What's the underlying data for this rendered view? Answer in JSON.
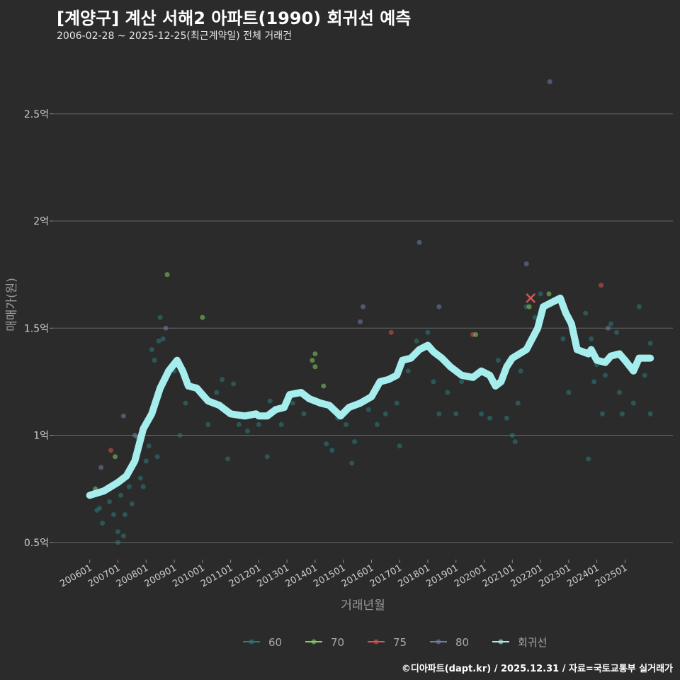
{
  "chart_data": {
    "type": "scatter",
    "title": "[계양구] 계산 서해2 아파트(1990) 회귀선 예측",
    "subtitle": "2006-02-28 ~ 2025-12-25(최근계약일) 전체 거래건",
    "xlabel": "거래년월",
    "ylabel": "매매가(원)",
    "xlim": [
      2004.7,
      2026.7
    ],
    "ylim": [
      0.42,
      2.8
    ],
    "x_ticks": [
      "200601",
      "200701",
      "200801",
      "200901",
      "201001",
      "201101",
      "201201",
      "201301",
      "201401",
      "201501",
      "201601",
      "201701",
      "201801",
      "201901",
      "202001",
      "202101",
      "202201",
      "202301",
      "202401",
      "202501"
    ],
    "y_ticks": [
      {
        "v": 0.5,
        "label": "0.5억"
      },
      {
        "v": 1,
        "label": "1억"
      },
      {
        "v": 1.5,
        "label": "1.5억"
      },
      {
        "v": 2,
        "label": "2억"
      },
      {
        "v": 2.5,
        "label": "2.5억"
      }
    ],
    "grid": true,
    "legend": "bottom",
    "legend_items": [
      {
        "label": "60",
        "color": "#2b7b7b"
      },
      {
        "label": "70",
        "color": "#7fd15d"
      },
      {
        "label": "75",
        "color": "#d9534f"
      },
      {
        "label": "80",
        "color": "#6c7fa8"
      },
      {
        "label": "회귀선",
        "color": "#a6eeee"
      }
    ],
    "points": [
      [
        2006.1,
        0.72,
        "60"
      ],
      [
        2006.2,
        0.75,
        "70"
      ],
      [
        2006.25,
        0.65,
        "60"
      ],
      [
        2006.35,
        0.66,
        "60"
      ],
      [
        2006.4,
        0.85,
        "80"
      ],
      [
        2006.45,
        0.59,
        "60"
      ],
      [
        2006.7,
        0.69,
        "60"
      ],
      [
        2006.75,
        0.93,
        "75"
      ],
      [
        2006.85,
        0.63,
        "60"
      ],
      [
        2006.9,
        0.9,
        "70"
      ],
      [
        2007.0,
        0.55,
        "60"
      ],
      [
        2007.0,
        0.5,
        "60"
      ],
      [
        2007.1,
        0.72,
        "60"
      ],
      [
        2007.2,
        0.53,
        "60"
      ],
      [
        2007.2,
        1.09,
        "80"
      ],
      [
        2007.25,
        0.63,
        "60"
      ],
      [
        2007.4,
        0.76,
        "60"
      ],
      [
        2007.5,
        0.68,
        "60"
      ],
      [
        2007.6,
        1.0,
        "80"
      ],
      [
        2007.7,
        0.99,
        "80"
      ],
      [
        2007.8,
        0.8,
        "60"
      ],
      [
        2007.9,
        0.76,
        "60"
      ],
      [
        2008.0,
        0.88,
        "60"
      ],
      [
        2008.1,
        0.95,
        "60"
      ],
      [
        2008.2,
        1.4,
        "60"
      ],
      [
        2008.3,
        1.35,
        "60"
      ],
      [
        2008.4,
        0.9,
        "60"
      ],
      [
        2008.45,
        1.44,
        "60"
      ],
      [
        2008.5,
        1.55,
        "60"
      ],
      [
        2008.6,
        1.45,
        "60"
      ],
      [
        2008.7,
        1.5,
        "80"
      ],
      [
        2008.75,
        1.75,
        "70"
      ],
      [
        2009.0,
        1.3,
        "60"
      ],
      [
        2009.2,
        1.0,
        "60"
      ],
      [
        2009.4,
        1.15,
        "60"
      ],
      [
        2009.6,
        1.22,
        "60"
      ],
      [
        2010.0,
        1.55,
        "70"
      ],
      [
        2010.2,
        1.05,
        "60"
      ],
      [
        2010.5,
        1.2,
        "60"
      ],
      [
        2010.7,
        1.26,
        "60"
      ],
      [
        2010.9,
        0.89,
        "60"
      ],
      [
        2011.1,
        1.24,
        "60"
      ],
      [
        2011.3,
        1.05,
        "60"
      ],
      [
        2011.6,
        1.02,
        "60"
      ],
      [
        2012.0,
        1.05,
        "60"
      ],
      [
        2012.3,
        0.9,
        "60"
      ],
      [
        2012.4,
        1.16,
        "60"
      ],
      [
        2012.8,
        1.05,
        "60"
      ],
      [
        2013.2,
        1.15,
        "60"
      ],
      [
        2013.6,
        1.1,
        "60"
      ],
      [
        2013.9,
        1.35,
        "70"
      ],
      [
        2014.0,
        1.38,
        "70"
      ],
      [
        2014.0,
        1.32,
        "70"
      ],
      [
        2014.3,
        1.23,
        "70"
      ],
      [
        2014.4,
        0.96,
        "60"
      ],
      [
        2014.6,
        0.93,
        "60"
      ],
      [
        2014.8,
        1.08,
        "60"
      ],
      [
        2015.1,
        1.05,
        "60"
      ],
      [
        2015.3,
        0.87,
        "60"
      ],
      [
        2015.4,
        0.97,
        "60"
      ],
      [
        2015.6,
        1.53,
        "80"
      ],
      [
        2015.7,
        1.6,
        "80"
      ],
      [
        2015.9,
        1.12,
        "60"
      ],
      [
        2016.2,
        1.05,
        "60"
      ],
      [
        2016.5,
        1.1,
        "60"
      ],
      [
        2016.7,
        1.48,
        "75"
      ],
      [
        2016.9,
        1.15,
        "60"
      ],
      [
        2017.0,
        0.95,
        "60"
      ],
      [
        2017.3,
        1.3,
        "60"
      ],
      [
        2017.6,
        1.44,
        "60"
      ],
      [
        2017.7,
        1.9,
        "80"
      ],
      [
        2018.0,
        1.48,
        "60"
      ],
      [
        2018.2,
        1.25,
        "60"
      ],
      [
        2018.4,
        1.6,
        "80"
      ],
      [
        2018.4,
        1.1,
        "60"
      ],
      [
        2018.7,
        1.2,
        "60"
      ],
      [
        2019.0,
        1.1,
        "60"
      ],
      [
        2019.2,
        1.25,
        "60"
      ],
      [
        2019.6,
        1.47,
        "75"
      ],
      [
        2019.7,
        1.47,
        "70"
      ],
      [
        2019.9,
        1.1,
        "60"
      ],
      [
        2020.2,
        1.08,
        "60"
      ],
      [
        2020.5,
        1.35,
        "60"
      ],
      [
        2020.8,
        1.08,
        "60"
      ],
      [
        2021.0,
        1.0,
        "60"
      ],
      [
        2021.1,
        0.97,
        "60"
      ],
      [
        2021.2,
        1.15,
        "60"
      ],
      [
        2021.3,
        1.3,
        "60"
      ],
      [
        2021.5,
        1.8,
        "80"
      ],
      [
        2021.5,
        1.6,
        "60"
      ],
      [
        2021.6,
        1.6,
        "70"
      ],
      [
        2021.8,
        1.55,
        "60"
      ],
      [
        2022.0,
        1.66,
        "60"
      ],
      [
        2022.3,
        1.66,
        "70"
      ],
      [
        2022.33,
        2.65,
        "80"
      ],
      [
        2022.8,
        1.45,
        "60"
      ],
      [
        2023.0,
        1.2,
        "60"
      ],
      [
        2023.6,
        1.57,
        "60"
      ],
      [
        2023.7,
        0.89,
        "60"
      ],
      [
        2023.8,
        1.45,
        "60"
      ],
      [
        2023.9,
        1.25,
        "60"
      ],
      [
        2024.0,
        1.33,
        "60"
      ],
      [
        2024.15,
        1.7,
        "75"
      ],
      [
        2024.2,
        1.1,
        "60"
      ],
      [
        2024.3,
        1.28,
        "60"
      ],
      [
        2024.4,
        1.5,
        "80"
      ],
      [
        2024.5,
        1.52,
        "60"
      ],
      [
        2024.7,
        1.48,
        "60"
      ],
      [
        2024.8,
        1.2,
        "60"
      ],
      [
        2024.9,
        1.1,
        "60"
      ],
      [
        2025.3,
        1.15,
        "60"
      ],
      [
        2025.5,
        1.6,
        "60"
      ],
      [
        2025.7,
        1.28,
        "60"
      ],
      [
        2025.9,
        1.43,
        "60"
      ],
      [
        2025.9,
        1.1,
        "60"
      ]
    ],
    "forecast_marker": [
      2021.65,
      1.64
    ],
    "regression": [
      [
        2006.0,
        0.72
      ],
      [
        2006.5,
        0.74
      ],
      [
        2007.0,
        0.78
      ],
      [
        2007.3,
        0.81
      ],
      [
        2007.6,
        0.88
      ],
      [
        2007.9,
        1.03
      ],
      [
        2008.2,
        1.1
      ],
      [
        2008.5,
        1.22
      ],
      [
        2008.8,
        1.3
      ],
      [
        2009.1,
        1.35
      ],
      [
        2009.3,
        1.3
      ],
      [
        2009.5,
        1.23
      ],
      [
        2009.8,
        1.22
      ],
      [
        2010.2,
        1.16
      ],
      [
        2010.6,
        1.14
      ],
      [
        2011.0,
        1.1
      ],
      [
        2011.5,
        1.09
      ],
      [
        2011.9,
        1.1
      ],
      [
        2012.0,
        1.09
      ],
      [
        2012.3,
        1.09
      ],
      [
        2012.6,
        1.12
      ],
      [
        2012.9,
        1.13
      ],
      [
        2013.1,
        1.19
      ],
      [
        2013.5,
        1.2
      ],
      [
        2013.8,
        1.17
      ],
      [
        2014.2,
        1.15
      ],
      [
        2014.5,
        1.14
      ],
      [
        2014.9,
        1.09
      ],
      [
        2015.2,
        1.13
      ],
      [
        2015.6,
        1.15
      ],
      [
        2016.0,
        1.18
      ],
      [
        2016.3,
        1.25
      ],
      [
        2016.6,
        1.26
      ],
      [
        2016.9,
        1.28
      ],
      [
        2017.1,
        1.35
      ],
      [
        2017.4,
        1.36
      ],
      [
        2017.7,
        1.4
      ],
      [
        2018.0,
        1.42
      ],
      [
        2018.2,
        1.39
      ],
      [
        2018.5,
        1.36
      ],
      [
        2018.8,
        1.32
      ],
      [
        2019.2,
        1.28
      ],
      [
        2019.6,
        1.27
      ],
      [
        2019.9,
        1.3
      ],
      [
        2020.2,
        1.28
      ],
      [
        2020.4,
        1.23
      ],
      [
        2020.6,
        1.25
      ],
      [
        2020.8,
        1.32
      ],
      [
        2021.0,
        1.36
      ],
      [
        2021.5,
        1.4
      ],
      [
        2021.7,
        1.45
      ],
      [
        2021.9,
        1.5
      ],
      [
        2022.1,
        1.6
      ],
      [
        2022.4,
        1.62
      ],
      [
        2022.7,
        1.64
      ],
      [
        2022.9,
        1.57
      ],
      [
        2023.1,
        1.52
      ],
      [
        2023.3,
        1.4
      ],
      [
        2023.7,
        1.38
      ],
      [
        2023.8,
        1.4
      ],
      [
        2024.0,
        1.35
      ],
      [
        2024.3,
        1.34
      ],
      [
        2024.5,
        1.37
      ],
      [
        2024.8,
        1.38
      ],
      [
        2025.0,
        1.35
      ],
      [
        2025.3,
        1.3
      ],
      [
        2025.5,
        1.36
      ],
      [
        2025.9,
        1.36
      ]
    ]
  },
  "caption": "©디아파트(dapt.kr) / 2025.12.31 / 자료=국토교통부 실거래가"
}
